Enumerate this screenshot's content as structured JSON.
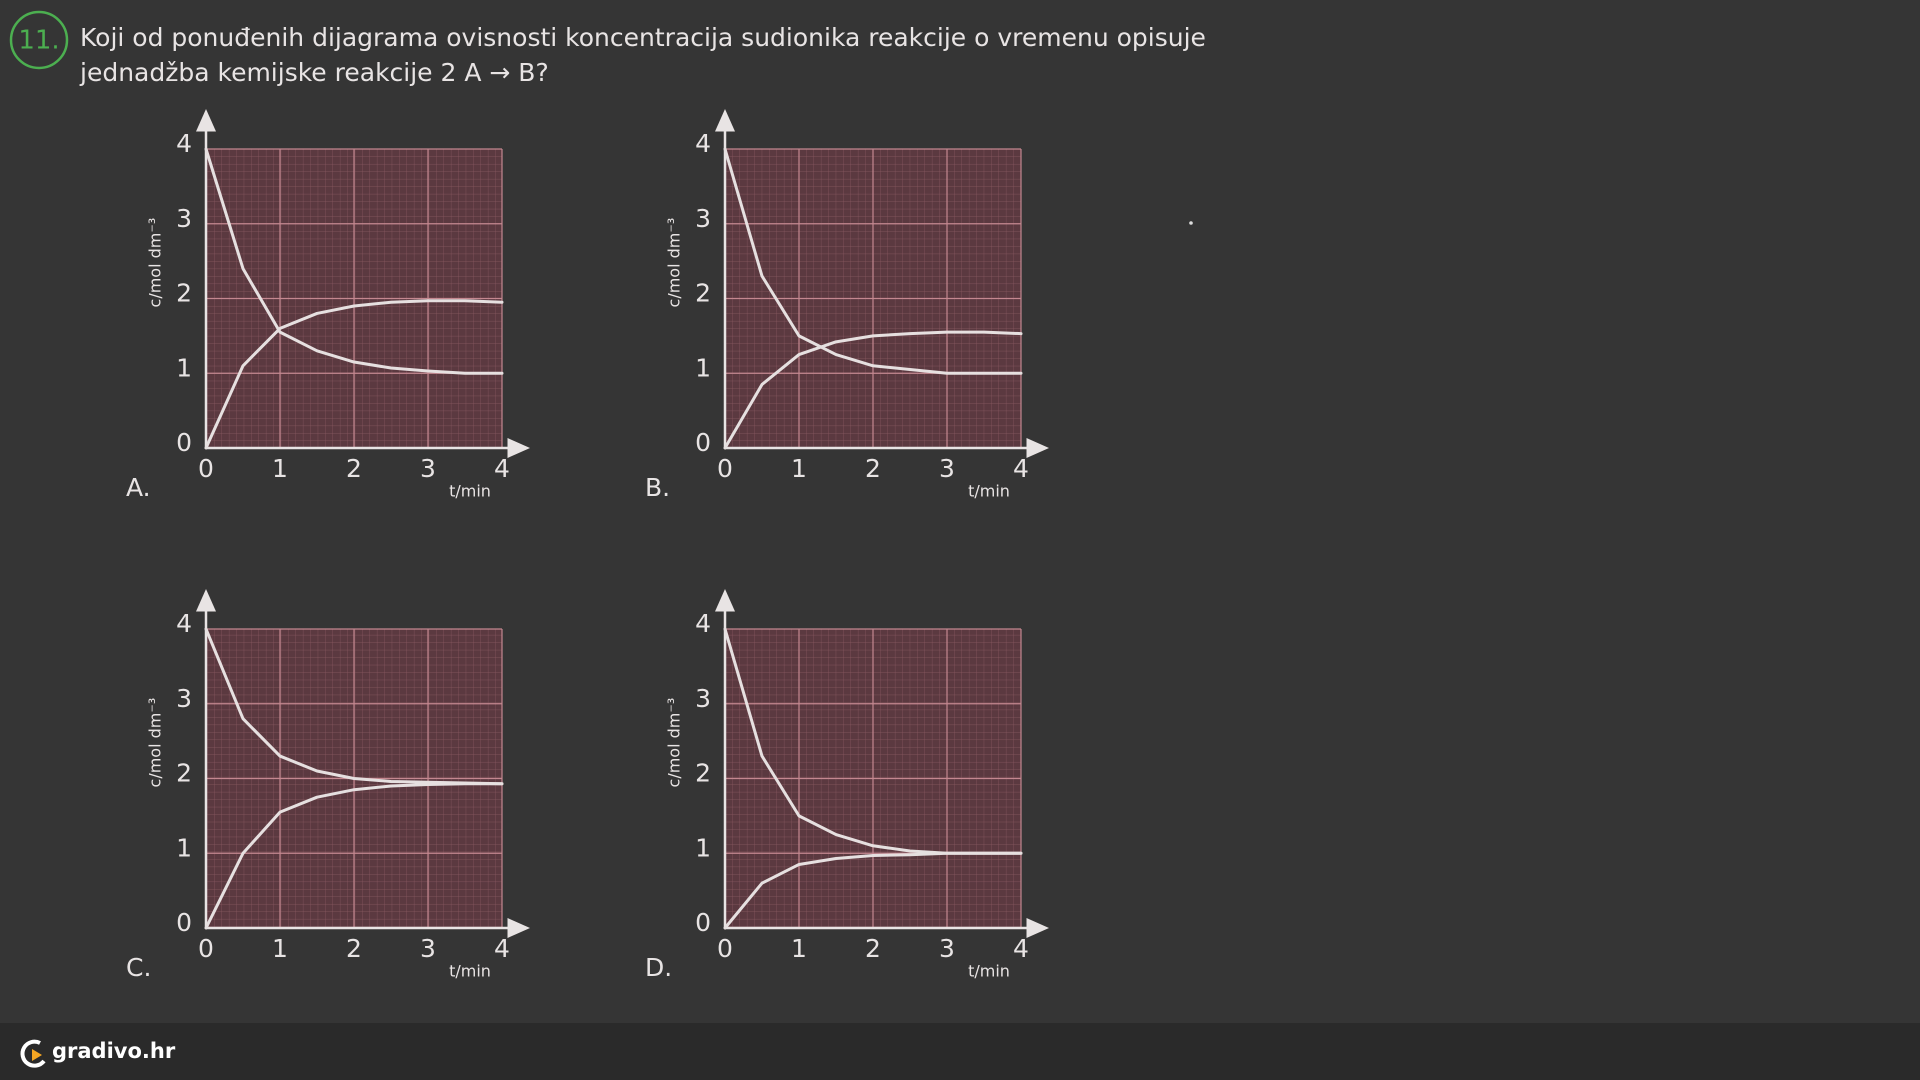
{
  "question": {
    "number": "11.",
    "lines": [
      "Koji od ponuđenih dijagrama ovisnosti koncentracija sudionika reakcije o vremenu opisuje",
      "jednadžba kemijske reakcije 2 A → B?"
    ]
  },
  "footer": "gradivo.hr",
  "chart_data": [
    {
      "type": "line",
      "label": "A.",
      "xlabel": "t/min",
      "ylabel": "c/mol dm⁻³",
      "x": [
        0,
        0.5,
        1,
        1.5,
        2,
        2.5,
        3,
        3.5,
        4
      ],
      "xlim": [
        0,
        4
      ],
      "ylim": [
        0,
        4
      ],
      "xticks": [
        0,
        1,
        2,
        3,
        4
      ],
      "yticks": [
        0,
        1,
        2,
        3,
        4
      ],
      "grid": true,
      "series": [
        {
          "color": "#e6e0e0",
          "values": [
            4,
            2.4,
            1.55,
            1.3,
            1.15,
            1.07,
            1.03,
            1.0,
            1.0
          ]
        },
        {
          "color": "#e6e0e0",
          "values": [
            0,
            1.1,
            1.6,
            1.8,
            1.9,
            1.95,
            1.97,
            1.97,
            1.95
          ]
        }
      ]
    },
    {
      "type": "line",
      "label": "B.",
      "xlabel": "t/min",
      "ylabel": "c/mol dm⁻³",
      "x": [
        0,
        0.5,
        1,
        1.5,
        2,
        2.5,
        3,
        3.5,
        4
      ],
      "xlim": [
        0,
        4
      ],
      "ylim": [
        0,
        4
      ],
      "xticks": [
        0,
        1,
        2,
        3,
        4
      ],
      "yticks": [
        0,
        1,
        2,
        3,
        4
      ],
      "grid": true,
      "series": [
        {
          "color": "#e6e0e0",
          "values": [
            4,
            2.3,
            1.5,
            1.25,
            1.1,
            1.05,
            1.0,
            1.0,
            1.0
          ]
        },
        {
          "color": "#e6e0e0",
          "values": [
            0,
            0.85,
            1.25,
            1.42,
            1.5,
            1.53,
            1.55,
            1.55,
            1.53
          ]
        }
      ]
    },
    {
      "type": "line",
      "label": "C.",
      "xlabel": "t/min",
      "ylabel": "c/mol dm⁻³",
      "x": [
        0,
        0.5,
        1,
        1.5,
        2,
        2.5,
        3,
        3.5,
        4
      ],
      "xlim": [
        0,
        4
      ],
      "ylim": [
        0,
        4
      ],
      "xticks": [
        0,
        1,
        2,
        3,
        4
      ],
      "yticks": [
        0,
        1,
        2,
        3,
        4
      ],
      "grid": true,
      "series": [
        {
          "color": "#e6e0e0",
          "values": [
            4,
            2.8,
            2.3,
            2.1,
            2.0,
            1.96,
            1.95,
            1.94,
            1.93
          ]
        },
        {
          "color": "#e6e0e0",
          "values": [
            0,
            1.0,
            1.55,
            1.75,
            1.85,
            1.9,
            1.92,
            1.93,
            1.93
          ]
        }
      ]
    },
    {
      "type": "line",
      "label": "D.",
      "xlabel": "t/min",
      "ylabel": "c/mol dm⁻³",
      "x": [
        0,
        0.5,
        1,
        1.5,
        2,
        2.5,
        3,
        3.5,
        4
      ],
      "xlim": [
        0,
        4
      ],
      "ylim": [
        0,
        4
      ],
      "xticks": [
        0,
        1,
        2,
        3,
        4
      ],
      "yticks": [
        0,
        1,
        2,
        3,
        4
      ],
      "grid": true,
      "series": [
        {
          "color": "#e6e0e0",
          "values": [
            4,
            2.3,
            1.5,
            1.25,
            1.1,
            1.03,
            1.0,
            1.0,
            1.0
          ]
        },
        {
          "color": "#e6e0e0",
          "values": [
            0,
            0.6,
            0.85,
            0.93,
            0.97,
            0.98,
            1.0,
            1.0,
            1.0
          ]
        }
      ]
    }
  ]
}
